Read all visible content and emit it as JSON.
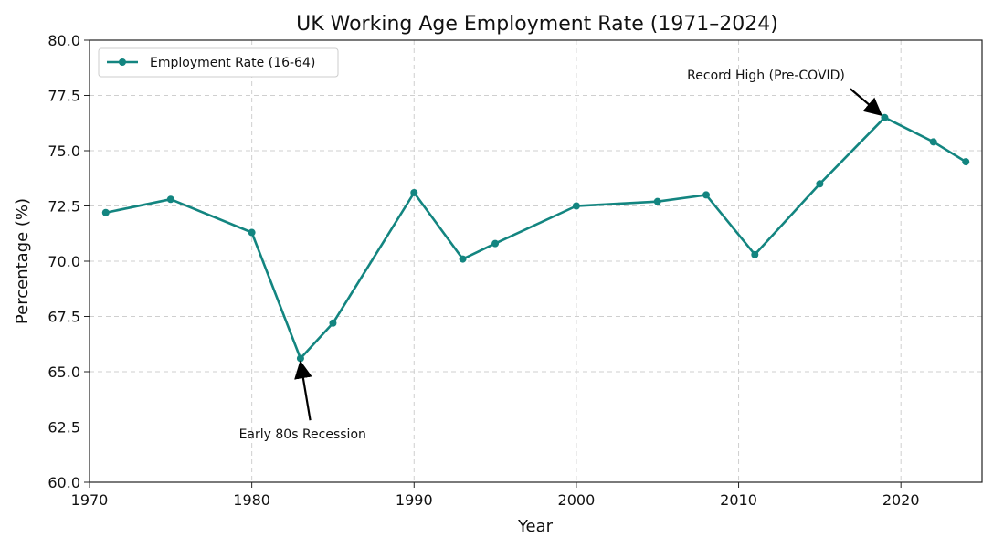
{
  "chart_data": {
    "type": "line",
    "title": "UK Working Age Employment Rate (1971–2024)",
    "xlabel": "Year",
    "ylabel": "Percentage (%)",
    "xlim": [
      1970,
      2025
    ],
    "ylim": [
      60,
      80
    ],
    "xticks": [
      "1970",
      "1980",
      "1990",
      "2000",
      "2010",
      "2020"
    ],
    "yticks": [
      "60.0",
      "62.5",
      "65.0",
      "67.5",
      "70.0",
      "72.5",
      "75.0",
      "77.5",
      "80.0"
    ],
    "grid": true,
    "legend_position": "top-left",
    "series": [
      {
        "name": "Employment Rate (16-64)",
        "color": "#138580",
        "marker": "circle",
        "x": [
          1971,
          1975,
          1980,
          1983,
          1985,
          1990,
          1993,
          1995,
          2000,
          2005,
          2008,
          2011,
          2015,
          2019,
          2022,
          2024
        ],
        "y": [
          72.2,
          72.8,
          71.3,
          65.6,
          67.2,
          73.1,
          70.1,
          70.8,
          72.5,
          72.7,
          73.0,
          70.3,
          73.5,
          76.5,
          75.4,
          74.5
        ]
      }
    ],
    "annotations": [
      {
        "text": "Early 80s Recession",
        "point": [
          1983,
          65.6
        ],
        "text_pos": [
          1983.6,
          62.8
        ]
      },
      {
        "text": "Record High (Pre-COVID)",
        "point": [
          2019,
          76.5
        ],
        "text_pos": [
          2017.0,
          77.8
        ]
      }
    ]
  }
}
